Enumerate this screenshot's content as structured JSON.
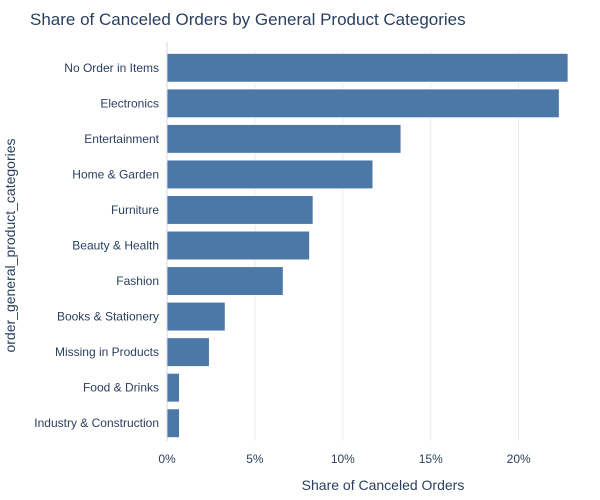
{
  "chart_data": {
    "type": "bar",
    "orientation": "horizontal",
    "title": "Share of Canceled Orders by General Product Categories",
    "xlabel": "Share of Canceled Orders",
    "ylabel": "order_general_product_categories",
    "categories": [
      "No Order in Items",
      "Electronics",
      "Entertainment",
      "Home & Garden",
      "Furniture",
      "Beauty & Health",
      "Fashion",
      "Books & Stationery",
      "Missing in Products",
      "Food & Drinks",
      "Industry & Construction"
    ],
    "values": [
      22.8,
      22.3,
      13.3,
      11.7,
      8.3,
      8.1,
      6.6,
      3.3,
      2.4,
      0.7,
      0.7
    ],
    "xlim": [
      0,
      24
    ],
    "xticks": [
      0,
      5,
      10,
      15,
      20
    ],
    "xtick_labels": [
      "0%",
      "5%",
      "10%",
      "15%",
      "20%"
    ],
    "grid": true,
    "bar_color": "#4c78a8"
  }
}
